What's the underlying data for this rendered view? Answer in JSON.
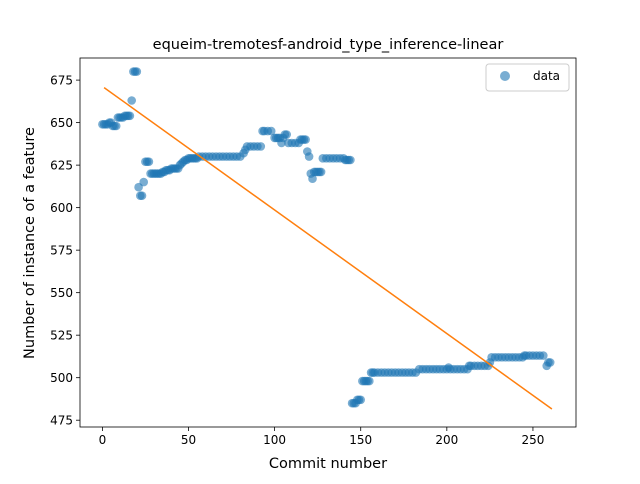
{
  "chart_data": {
    "type": "scatter",
    "title": "equeim-tremotesf-android_type_inference-linear",
    "xlabel": "Commit number",
    "ylabel": "Number of instance of a feature",
    "xlim": [
      -13,
      275
    ],
    "ylim": [
      471,
      688
    ],
    "xticks": [
      0,
      50,
      100,
      150,
      200,
      250
    ],
    "yticks": [
      475,
      500,
      525,
      550,
      575,
      600,
      625,
      650,
      675
    ],
    "legend": {
      "position": "top-right",
      "entries": [
        "data"
      ]
    },
    "colors": {
      "data": "#1f77b4",
      "fit": "#ff7f0e"
    },
    "series": [
      {
        "name": "data",
        "kind": "scatter",
        "points": [
          [
            0,
            649
          ],
          [
            1,
            649
          ],
          [
            2,
            649
          ],
          [
            3,
            649
          ],
          [
            4,
            650
          ],
          [
            5,
            650
          ],
          [
            6,
            648
          ],
          [
            7,
            648
          ],
          [
            8,
            648
          ],
          [
            9,
            653
          ],
          [
            10,
            653
          ],
          [
            11,
            653
          ],
          [
            12,
            653
          ],
          [
            13,
            654
          ],
          [
            14,
            654
          ],
          [
            15,
            654
          ],
          [
            16,
            654
          ],
          [
            17,
            663
          ],
          [
            18,
            680
          ],
          [
            19,
            680
          ],
          [
            20,
            680
          ],
          [
            21,
            612
          ],
          [
            22,
            607
          ],
          [
            23,
            607
          ],
          [
            24,
            615
          ],
          [
            25,
            627
          ],
          [
            26,
            627
          ],
          [
            27,
            627
          ],
          [
            28,
            620
          ],
          [
            29,
            620
          ],
          [
            30,
            620
          ],
          [
            31,
            620
          ],
          [
            32,
            620
          ],
          [
            33,
            620
          ],
          [
            34,
            620
          ],
          [
            35,
            621
          ],
          [
            36,
            621
          ],
          [
            37,
            622
          ],
          [
            38,
            622
          ],
          [
            39,
            622
          ],
          [
            40,
            623
          ],
          [
            41,
            623
          ],
          [
            42,
            623
          ],
          [
            43,
            623
          ],
          [
            44,
            623
          ],
          [
            45,
            625
          ],
          [
            46,
            626
          ],
          [
            47,
            627
          ],
          [
            48,
            628
          ],
          [
            49,
            628
          ],
          [
            50,
            629
          ],
          [
            51,
            629
          ],
          [
            52,
            629
          ],
          [
            53,
            629
          ],
          [
            54,
            629
          ],
          [
            55,
            629
          ],
          [
            56,
            630
          ],
          [
            58,
            630
          ],
          [
            60,
            630
          ],
          [
            62,
            630
          ],
          [
            64,
            630
          ],
          [
            66,
            630
          ],
          [
            68,
            630
          ],
          [
            70,
            630
          ],
          [
            72,
            630
          ],
          [
            74,
            630
          ],
          [
            76,
            630
          ],
          [
            78,
            630
          ],
          [
            80,
            630
          ],
          [
            82,
            632
          ],
          [
            83,
            634
          ],
          [
            84,
            636
          ],
          [
            86,
            636
          ],
          [
            88,
            636
          ],
          [
            90,
            636
          ],
          [
            92,
            636
          ],
          [
            93,
            645
          ],
          [
            94,
            645
          ],
          [
            96,
            645
          ],
          [
            98,
            645
          ],
          [
            100,
            641
          ],
          [
            101,
            641
          ],
          [
            102,
            641
          ],
          [
            103,
            641
          ],
          [
            104,
            638
          ],
          [
            105,
            641
          ],
          [
            106,
            643
          ],
          [
            107,
            643
          ],
          [
            108,
            638
          ],
          [
            110,
            638
          ],
          [
            112,
            638
          ],
          [
            114,
            638
          ],
          [
            115,
            640
          ],
          [
            116,
            640
          ],
          [
            117,
            640
          ],
          [
            118,
            640
          ],
          [
            119,
            633
          ],
          [
            120,
            630
          ],
          [
            121,
            620
          ],
          [
            122,
            617
          ],
          [
            123,
            621
          ],
          [
            124,
            621
          ],
          [
            125,
            621
          ],
          [
            126,
            621
          ],
          [
            127,
            621
          ],
          [
            128,
            629
          ],
          [
            130,
            629
          ],
          [
            132,
            629
          ],
          [
            134,
            629
          ],
          [
            136,
            629
          ],
          [
            138,
            629
          ],
          [
            140,
            629
          ],
          [
            141,
            628
          ],
          [
            142,
            628
          ],
          [
            143,
            628
          ],
          [
            144,
            628
          ],
          [
            145,
            485
          ],
          [
            146,
            485
          ],
          [
            147,
            485
          ],
          [
            148,
            487
          ],
          [
            149,
            487
          ],
          [
            150,
            487
          ],
          [
            151,
            498
          ],
          [
            152,
            498
          ],
          [
            153,
            498
          ],
          [
            154,
            498
          ],
          [
            155,
            498
          ],
          [
            156,
            503
          ],
          [
            157,
            503
          ],
          [
            158,
            503
          ],
          [
            160,
            503
          ],
          [
            162,
            503
          ],
          [
            164,
            503
          ],
          [
            166,
            503
          ],
          [
            168,
            503
          ],
          [
            170,
            503
          ],
          [
            172,
            503
          ],
          [
            174,
            503
          ],
          [
            176,
            503
          ],
          [
            178,
            503
          ],
          [
            180,
            503
          ],
          [
            182,
            503
          ],
          [
            184,
            505
          ],
          [
            186,
            505
          ],
          [
            188,
            505
          ],
          [
            190,
            505
          ],
          [
            192,
            505
          ],
          [
            194,
            505
          ],
          [
            196,
            505
          ],
          [
            198,
            505
          ],
          [
            200,
            505
          ],
          [
            201,
            506
          ],
          [
            202,
            505
          ],
          [
            204,
            505
          ],
          [
            206,
            505
          ],
          [
            208,
            505
          ],
          [
            210,
            505
          ],
          [
            212,
            505
          ],
          [
            213,
            507
          ],
          [
            214,
            507
          ],
          [
            216,
            507
          ],
          [
            218,
            507
          ],
          [
            220,
            507
          ],
          [
            222,
            507
          ],
          [
            224,
            507
          ],
          [
            225,
            509
          ],
          [
            226,
            512
          ],
          [
            228,
            512
          ],
          [
            230,
            512
          ],
          [
            232,
            512
          ],
          [
            234,
            512
          ],
          [
            236,
            512
          ],
          [
            238,
            512
          ],
          [
            240,
            512
          ],
          [
            242,
            512
          ],
          [
            244,
            512
          ],
          [
            245,
            513
          ],
          [
            246,
            513
          ],
          [
            248,
            513
          ],
          [
            250,
            513
          ],
          [
            252,
            513
          ],
          [
            254,
            513
          ],
          [
            256,
            513
          ],
          [
            258,
            507
          ],
          [
            259,
            509
          ],
          [
            260,
            509
          ]
        ]
      },
      {
        "name": "",
        "kind": "line",
        "points": [
          [
            1,
            670.6
          ],
          [
            261,
            481.6
          ]
        ]
      }
    ]
  }
}
